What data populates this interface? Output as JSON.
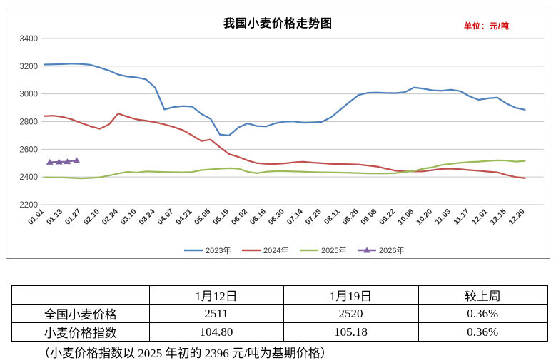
{
  "chart": {
    "title": "我国小麦价格走势图",
    "unit_label": "单位：元/吨"
  },
  "chart_data": {
    "type": "line",
    "title": "我国小麦价格走势图",
    "unit": "元/吨",
    "ylim": [
      2200,
      3400
    ],
    "y_step": 200,
    "grid": true,
    "legend_position": "bottom",
    "n_points": 53,
    "x_tick_labels": [
      "01.01",
      "01.13",
      "01.27",
      "02.10",
      "02.24",
      "03.10",
      "03.24",
      "04.07",
      "04.21",
      "05.05",
      "05.19",
      "06.02",
      "06.16",
      "06.30",
      "07.14",
      "07.28",
      "08.11",
      "08.25",
      "09.08",
      "09.22",
      "10.06",
      "10.20",
      "11.03",
      "11.17",
      "12.01",
      "12.15",
      "12.29"
    ],
    "points_per_tick": 2,
    "series": [
      {
        "name": "2023年",
        "color": "#4F81BD",
        "values": [
          3212,
          3213,
          3215,
          3218,
          3216,
          3210,
          3190,
          3169,
          3140,
          3125,
          3119,
          3105,
          3045,
          2888,
          2905,
          2912,
          2908,
          2855,
          2820,
          2706,
          2700,
          2758,
          2787,
          2768,
          2765,
          2788,
          2800,
          2802,
          2792,
          2794,
          2798,
          2830,
          2885,
          2940,
          2992,
          3008,
          3010,
          3007,
          3006,
          3012,
          3046,
          3038,
          3026,
          3023,
          3030,
          3020,
          2983,
          2957,
          2968,
          2974,
          2931,
          2900,
          2886
        ]
      },
      {
        "name": "2024年",
        "color": "#C0504D",
        "values": [
          2840,
          2843,
          2834,
          2816,
          2790,
          2766,
          2748,
          2780,
          2858,
          2835,
          2816,
          2806,
          2796,
          2780,
          2761,
          2738,
          2700,
          2660,
          2670,
          2615,
          2565,
          2545,
          2520,
          2500,
          2495,
          2494,
          2498,
          2506,
          2510,
          2504,
          2499,
          2495,
          2493,
          2492,
          2490,
          2483,
          2475,
          2460,
          2445,
          2440,
          2440,
          2441,
          2450,
          2458,
          2460,
          2456,
          2450,
          2445,
          2439,
          2434,
          2415,
          2400,
          2392
        ]
      },
      {
        "name": "2025年",
        "color": "#9BBB59",
        "values": [
          2398,
          2397,
          2396,
          2393,
          2390,
          2393,
          2398,
          2410,
          2425,
          2437,
          2432,
          2440,
          2438,
          2436,
          2435,
          2434,
          2436,
          2450,
          2455,
          2460,
          2463,
          2460,
          2438,
          2427,
          2438,
          2442,
          2442,
          2440,
          2438,
          2436,
          2434,
          2433,
          2432,
          2430,
          2428,
          2426,
          2425,
          2426,
          2428,
          2436,
          2443,
          2460,
          2470,
          2487,
          2495,
          2503,
          2508,
          2511,
          2516,
          2520,
          2519,
          2511,
          2515
        ]
      },
      {
        "name": "2026年",
        "color": "#8064A2",
        "marker": "triangle",
        "x_idx": [
          0.6,
          1.6,
          2.5,
          3.5
        ],
        "values": [
          2507,
          2509,
          2511,
          2520
        ]
      }
    ]
  },
  "price_table": {
    "columns": [
      "",
      "1月12日",
      "1月19日",
      "较上周"
    ],
    "rows": [
      {
        "cells": [
          "全国小麦价格",
          "2511",
          "2520",
          "0.36%"
        ]
      },
      {
        "cells": [
          "小麦价格指数",
          "104.80",
          "105.18",
          "0.36%"
        ]
      }
    ]
  },
  "footnote": "（小麦价格指数以 2025 年初的 2396 元/吨为基期价格）"
}
